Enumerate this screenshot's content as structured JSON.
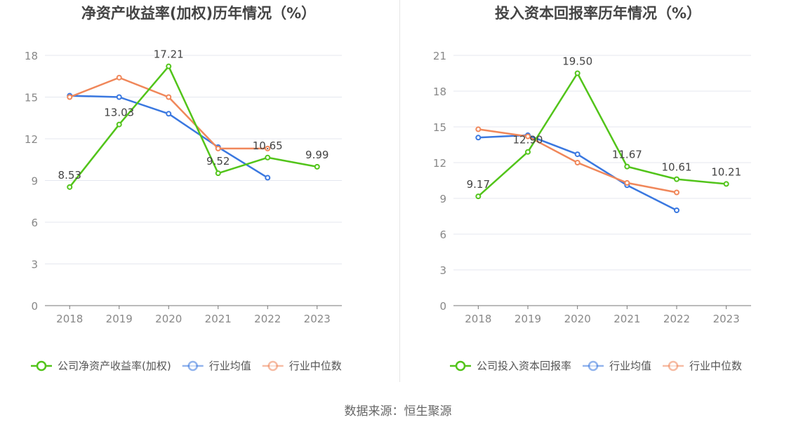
{
  "chart_data": [
    {
      "type": "line",
      "title": "净资产收益率(加权)历年情况（%）",
      "categories": [
        "2018",
        "2019",
        "2020",
        "2021",
        "2022",
        "2023"
      ],
      "yticks": [
        "0",
        "3",
        "6",
        "9",
        "12",
        "15",
        "18"
      ],
      "ylim": [
        0,
        18
      ],
      "grid": true,
      "legend_position": "bottom",
      "series": [
        {
          "name": "公司净资产收益率(加权)",
          "color": "#52c41a",
          "values": [
            8.53,
            13.03,
            17.21,
            9.52,
            10.65,
            9.99
          ],
          "labels": [
            "8.53",
            "13.03",
            "17.21",
            "9.52",
            "10.65",
            "9.99"
          ]
        },
        {
          "name": "行业均值",
          "color": "#3a78e0",
          "values": [
            15.1,
            15.0,
            13.8,
            11.4,
            9.2,
            null
          ]
        },
        {
          "name": "行业中位数",
          "color": "#f0875a",
          "values": [
            15.0,
            16.4,
            15.0,
            11.3,
            11.3,
            null
          ]
        }
      ]
    },
    {
      "type": "line",
      "title": "投入资本回报率历年情况（%）",
      "categories": [
        "2018",
        "2019",
        "2020",
        "2021",
        "2022",
        "2023"
      ],
      "yticks": [
        "0",
        "3",
        "6",
        "9",
        "12",
        "15",
        "18",
        "21"
      ],
      "ylim": [
        0,
        21
      ],
      "grid": true,
      "legend_position": "bottom",
      "series": [
        {
          "name": "公司投入资本回报率",
          "color": "#52c41a",
          "values": [
            9.17,
            12.9,
            19.5,
            11.67,
            10.61,
            10.21
          ],
          "labels": [
            "9.17",
            "12.90",
            "19.50",
            "11.67",
            "10.61",
            "10.21"
          ]
        },
        {
          "name": "行业均值",
          "color": "#3a78e0",
          "values": [
            14.1,
            14.3,
            12.7,
            10.1,
            8.0,
            null
          ]
        },
        {
          "name": "行业中位数",
          "color": "#f0875a",
          "values": [
            14.8,
            14.2,
            12.0,
            10.3,
            9.5,
            null
          ]
        }
      ]
    }
  ],
  "source": "数据来源：恒生聚源"
}
